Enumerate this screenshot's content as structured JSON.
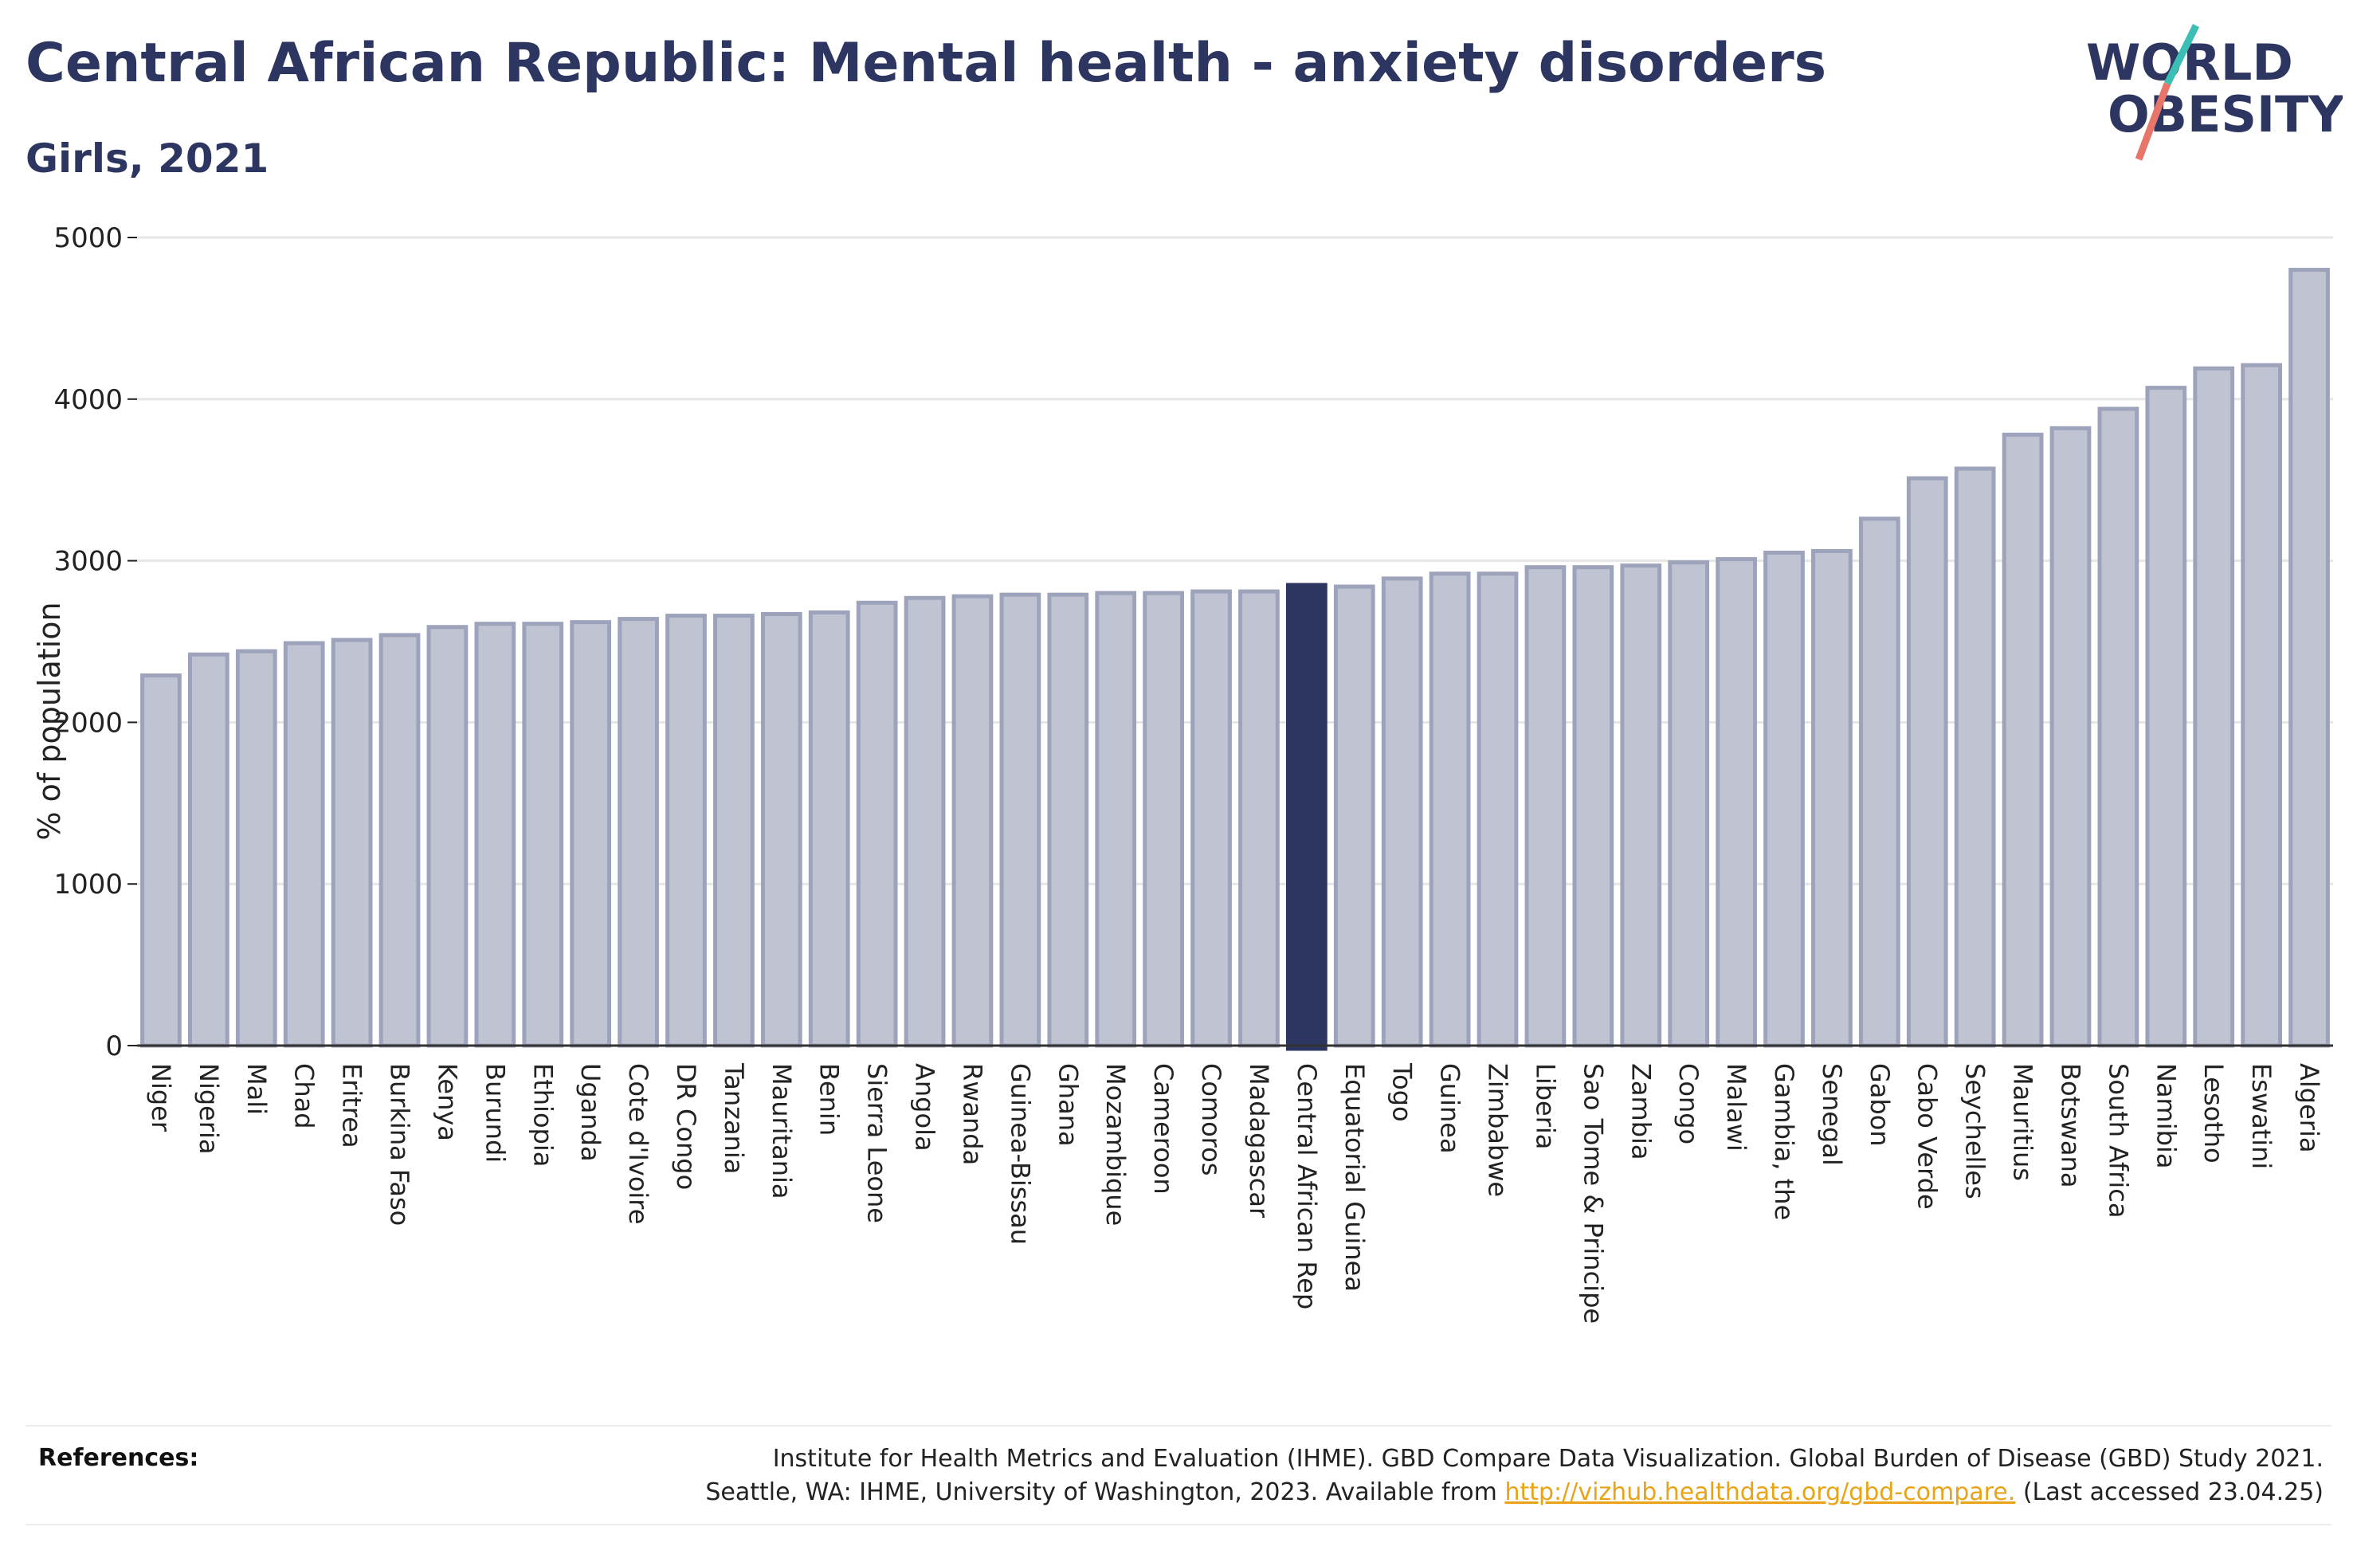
{
  "header": {
    "title": "Central African Republic: Mental health - anxiety disorders",
    "subtitle": "Girls, 2021"
  },
  "logo": {
    "line1": "WORLD",
    "line2": "OBESITY",
    "colors": {
      "text": "#2d3660",
      "teal": "#3bbfb5",
      "coral": "#e8756a"
    }
  },
  "chart_data": {
    "type": "bar",
    "title": "",
    "xlabel": "",
    "ylabel": "% of population",
    "ylim": [
      0,
      5000
    ],
    "yticks": [
      0,
      1000,
      2000,
      3000,
      4000,
      5000
    ],
    "grid": true,
    "highlight": "Central African Rep",
    "colors": {
      "bar": "#bfc3d2",
      "bar_stroke": "#9da3bb",
      "highlight": "#2d3660",
      "grid": "#e6e6e6"
    },
    "categories": [
      "Niger",
      "Nigeria",
      "Mali",
      "Chad",
      "Eritrea",
      "Burkina Faso",
      "Kenya",
      "Burundi",
      "Ethiopia",
      "Uganda",
      "Cote d'Ivoire",
      "DR Congo",
      "Tanzania",
      "Mauritania",
      "Benin",
      "Sierra Leone",
      "Angola",
      "Rwanda",
      "Guinea-Bissau",
      "Ghana",
      "Mozambique",
      "Cameroon",
      "Comoros",
      "Madagascar",
      "Central African Rep",
      "Equatorial Guinea",
      "Togo",
      "Guinea",
      "Zimbabwe",
      "Liberia",
      "Sao Tome & Principe",
      "Zambia",
      "Congo",
      "Malawi",
      "Gambia, the",
      "Senegal",
      "Gabon",
      "Cabo Verde",
      "Seychelles",
      "Mauritius",
      "Botswana",
      "South Africa",
      "Namibia",
      "Lesotho",
      "Eswatini",
      "Algeria"
    ],
    "values": [
      2290,
      2420,
      2440,
      2490,
      2510,
      2540,
      2590,
      2610,
      2610,
      2620,
      2640,
      2660,
      2660,
      2670,
      2680,
      2740,
      2770,
      2780,
      2790,
      2790,
      2800,
      2800,
      2810,
      2810,
      2850,
      2840,
      2890,
      2920,
      2920,
      2960,
      2960,
      2970,
      2990,
      3010,
      3050,
      3060,
      3260,
      3510,
      3570,
      3780,
      3820,
      3940,
      4070,
      4190,
      4210,
      4800
    ]
  },
  "references": {
    "label": "References:",
    "line1": "Institute for Health Metrics and Evaluation (IHME). GBD Compare Data Visualization. Global Burden of Disease (GBD) Study 2021.",
    "line2_pre": "Seattle, WA: IHME, University of Washington, 2023. Available from",
    "link": "http://vizhub.healthdata.org/gbd-compare.",
    "line2_post": "(Last accessed 23.04.25)"
  }
}
